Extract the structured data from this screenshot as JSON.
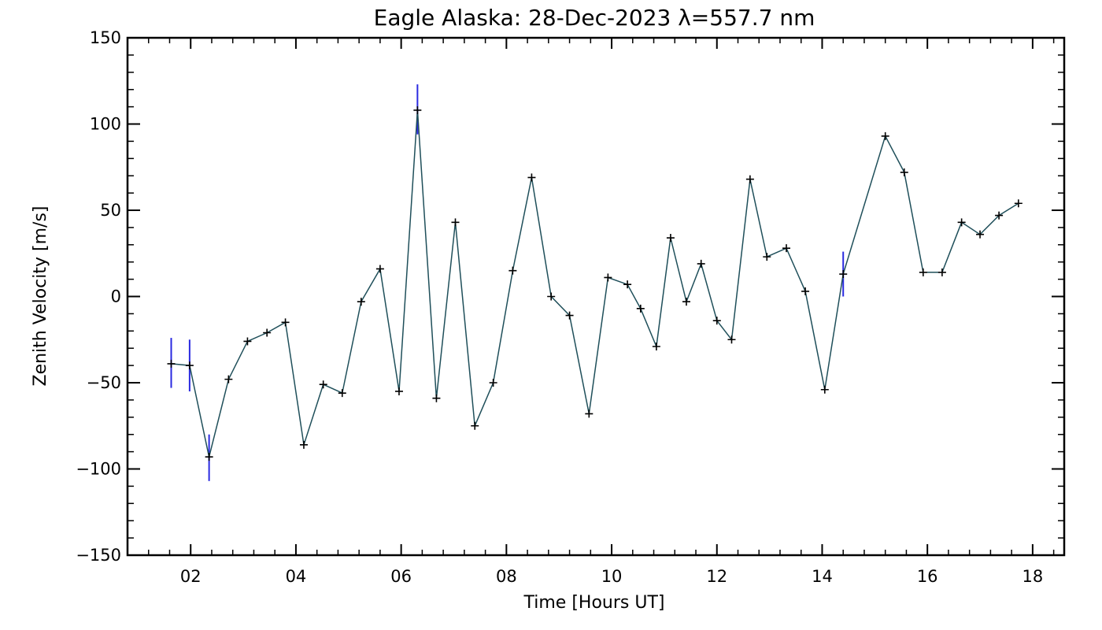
{
  "chart_data": {
    "type": "line",
    "title": "Eagle Alaska: 28-Dec-2023 λ=557.7 nm",
    "xlabel": "Time [Hours UT]",
    "ylabel": "Zenith Velocity [m/s]",
    "xlim": [
      0.8,
      18.6
    ],
    "ylim": [
      -150,
      150
    ],
    "x_ticks": [
      2,
      4,
      6,
      8,
      10,
      12,
      14,
      16,
      18
    ],
    "x_tick_labels": [
      "02",
      "04",
      "06",
      "08",
      "10",
      "12",
      "14",
      "16",
      "18"
    ],
    "y_ticks": [
      -150,
      -100,
      -50,
      0,
      50,
      100,
      150
    ],
    "y_tick_labels": [
      "−150",
      "−100",
      "−50",
      "0",
      "50",
      "100",
      "150"
    ],
    "grid": false,
    "colors": {
      "line": "#1f4f5a",
      "marker": "#000000",
      "error_bar": "#2a2ae0",
      "axes": "#000000"
    },
    "series": [
      {
        "x": [
          1.63,
          1.98,
          2.35,
          2.72,
          3.08,
          3.45,
          3.8,
          4.15,
          4.52,
          4.88,
          5.24,
          5.6,
          5.96,
          6.31,
          6.67,
          7.03,
          7.4,
          7.75,
          8.12,
          8.48,
          8.85,
          9.2,
          9.57,
          9.93,
          10.3,
          10.55,
          10.85,
          11.12,
          11.42,
          11.7,
          12.0,
          12.28,
          12.63,
          12.95,
          13.32,
          13.68,
          14.05,
          14.4,
          15.2,
          15.56,
          15.92,
          16.28,
          16.65,
          17.0,
          17.36,
          17.73
        ],
        "values": [
          -39,
          -40,
          -93,
          -48,
          -26,
          -21,
          -15,
          -86,
          -51,
          -56,
          -3,
          16,
          -55,
          108,
          -59,
          43,
          -75,
          -50,
          15,
          69,
          0,
          -11,
          -68,
          11,
          7,
          -7,
          -29,
          34,
          -3,
          19,
          -14,
          -25,
          68,
          23,
          28,
          3,
          -54,
          13,
          93,
          72,
          14,
          14,
          43,
          36,
          47,
          54
        ]
      }
    ],
    "error_bars": [
      {
        "x": 1.63,
        "low": -53,
        "high": -24
      },
      {
        "x": 1.98,
        "low": -55,
        "high": -25
      },
      {
        "x": 2.35,
        "low": -107,
        "high": -80
      },
      {
        "x": 6.31,
        "low": 94,
        "high": 123
      },
      {
        "x": 14.4,
        "low": 0,
        "high": 26
      }
    ]
  }
}
